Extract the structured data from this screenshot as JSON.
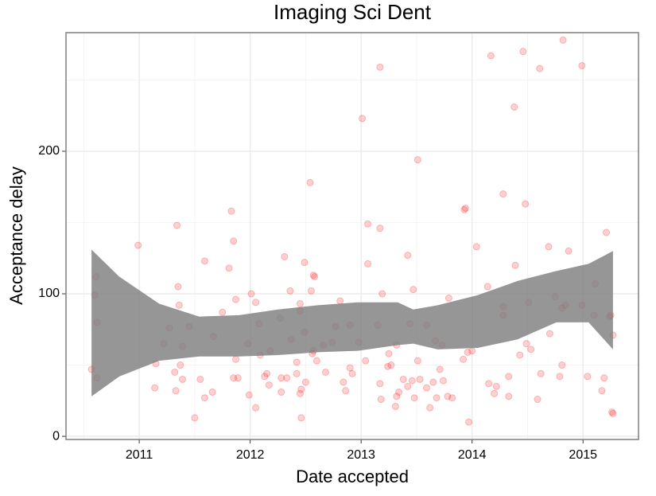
{
  "chart_data": {
    "type": "scatter",
    "title": "Imaging Sci Dent",
    "xlabel": "Date accepted",
    "ylabel": "Acceptance delay",
    "point_color": "#ff0000",
    "x": [
      2010.57,
      2010.61,
      2010.6,
      2010.62,
      2010.62,
      2010.99,
      2011.15,
      2011.14,
      2011.22,
      2011.27,
      2011.32,
      2011.34,
      2011.35,
      2011.36,
      2011.39,
      2011.37,
      2011.39,
      2011.33,
      2011.45,
      2011.5,
      2011.55,
      2011.59,
      2011.59,
      2011.66,
      2011.67,
      2011.75,
      2011.81,
      2011.83,
      2011.85,
      2011.85,
      2011.87,
      2011.89,
      2011.87,
      2011.98,
      2011.99,
      2012.01,
      2012.05,
      2012.05,
      2012.08,
      2012.09,
      2012.13,
      2012.15,
      2012.18,
      2012.17,
      2012.27,
      2012.28,
      2012.28,
      2012.31,
      2012.33,
      2012.36,
      2012.37,
      2012.42,
      2012.42,
      2012.45,
      2012.45,
      2012.45,
      2012.46,
      2012.46,
      2012.49,
      2012.49,
      2012.5,
      2012.54,
      2012.55,
      2012.57,
      2012.57,
      2012.58,
      2012.56,
      2012.6,
      2012.66,
      2012.68,
      2012.74,
      2012.77,
      2012.81,
      2012.84,
      2012.86,
      2012.9,
      2012.9,
      2012.92,
      2012.98,
      2013.01,
      2013.04,
      2013.06,
      2013.06,
      2013.15,
      2013.17,
      2013.17,
      2013.17,
      2013.19,
      2013.18,
      2013.24,
      2013.25,
      2013.27,
      2013.31,
      2013.32,
      2013.34,
      2013.32,
      2013.42,
      2013.38,
      2013.42,
      2013.44,
      2013.47,
      2013.46,
      2013.48,
      2013.51,
      2013.51,
      2013.53,
      2013.59,
      2013.59,
      2013.62,
      2013.65,
      2013.67,
      2013.68,
      2013.71,
      2013.73,
      2013.74,
      2013.78,
      2013.79,
      2013.82,
      2013.92,
      2013.93,
      2013.94,
      2013.96,
      2013.97,
      2014.0,
      2014.04,
      2014.14,
      2014.15,
      2014.17,
      2014.2,
      2014.22,
      2014.28,
      2014.28,
      2014.28,
      2014.33,
      2014.33,
      2014.38,
      2014.39,
      2014.43,
      2014.46,
      2014.48,
      2014.49,
      2014.51,
      2014.53,
      2014.59,
      2014.61,
      2014.62,
      2014.69,
      2014.7,
      2014.75,
      2014.79,
      2014.81,
      2014.81,
      2014.82,
      2014.84,
      2014.87,
      2014.99,
      2014.99,
      2015.04,
      2015.1,
      2015.11,
      2015.17,
      2015.19,
      2015.21,
      2015.24,
      2015.25,
      2015.26,
      2015.27,
      2015.27
    ],
    "values": [
      47,
      112,
      99,
      80,
      41,
      134,
      51,
      34,
      65,
      76,
      45,
      148,
      105,
      92,
      40,
      50,
      63,
      32,
      77,
      13,
      40,
      27,
      123,
      31,
      70,
      87,
      118,
      158,
      41,
      137,
      96,
      41,
      54,
      65,
      29,
      100,
      20,
      94,
      79,
      57,
      42,
      44,
      60,
      36,
      83,
      41,
      31,
      126,
      41,
      102,
      68,
      52,
      44,
      93,
      30,
      88,
      13,
      33,
      122,
      73,
      38,
      178,
      102,
      113,
      60,
      112,
      58,
      53,
      64,
      45,
      66,
      77,
      95,
      38,
      32,
      48,
      78,
      44,
      66,
      223,
      53,
      149,
      121,
      78,
      146,
      259,
      37,
      100,
      26,
      49,
      58,
      50,
      21,
      28,
      31,
      64,
      127,
      40,
      35,
      79,
      103,
      39,
      27,
      194,
      53,
      40,
      78,
      34,
      20,
      38,
      67,
      27,
      47,
      64,
      39,
      28,
      97,
      27,
      54,
      159,
      160,
      59,
      10,
      60,
      133,
      105,
      37,
      267,
      30,
      35,
      170,
      91,
      85,
      28,
      42,
      231,
      120,
      57,
      270,
      163,
      65,
      94,
      61,
      26,
      258,
      44,
      133,
      72,
      98,
      42,
      50,
      90,
      278,
      92,
      130,
      260,
      92,
      42,
      85,
      107,
      32,
      41,
      143,
      84,
      85,
      17,
      16,
      71
    ],
    "band": {
      "color": "#7f7f7f",
      "x": [
        2010.57,
        2010.82,
        2011.18,
        2011.54,
        2011.9,
        2012.25,
        2012.61,
        2012.97,
        2013.33,
        2013.47,
        2013.69,
        2014.05,
        2014.41,
        2014.76,
        2015.05,
        2015.27
      ],
      "upper": [
        131,
        112,
        93,
        84,
        85,
        89,
        92,
        94,
        94,
        89,
        92,
        99,
        109,
        116,
        121,
        130
      ],
      "lower": [
        28,
        42,
        53,
        56,
        56,
        57,
        59,
        60,
        64,
        65,
        61,
        62,
        68,
        80,
        80,
        61
      ]
    },
    "xlim": [
      2010.34,
      2015.5
    ],
    "ylim": [
      -2.2,
      283.2
    ],
    "xticks": [
      2011,
      2012,
      2013,
      2014,
      2015
    ],
    "yticks": [
      0,
      100,
      200
    ],
    "xminor": [
      2010.5,
      2011.5,
      2012.5,
      2013.5,
      2014.5
    ],
    "yminor": [
      50,
      150,
      250
    ],
    "grid": true
  }
}
